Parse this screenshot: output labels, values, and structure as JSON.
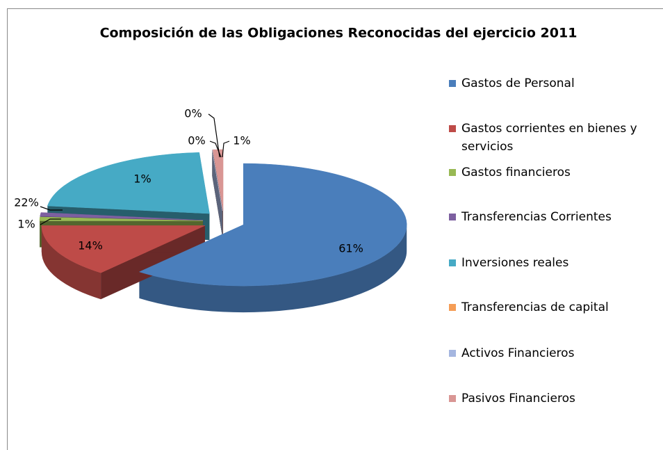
{
  "chart_data": {
    "type": "pie",
    "title": "Composición de las Obligaciones Reconocidas del ejercicio 2011",
    "categories": [
      "Gastos de Personal",
      "Gastos corrientes en bienes y servicios",
      "Gastos financieros",
      "Transferencias Corrientes",
      "Inversiones reales",
      "Transferencias de capital",
      "Activos Financieros",
      "Pasivos Financieros"
    ],
    "values": [
      61,
      14,
      1,
      1,
      22,
      0,
      0,
      1
    ],
    "value_labels": [
      "61%",
      "14%",
      "1%",
      "1%",
      "22%",
      "0%",
      "0%",
      "1%"
    ],
    "colors": [
      "#4a7ebb",
      "#be4b48",
      "#98b954",
      "#7d60a0",
      "#46aac5",
      "#f59d56",
      "#a5b6e0",
      "#d99694"
    ],
    "legend": "right"
  }
}
